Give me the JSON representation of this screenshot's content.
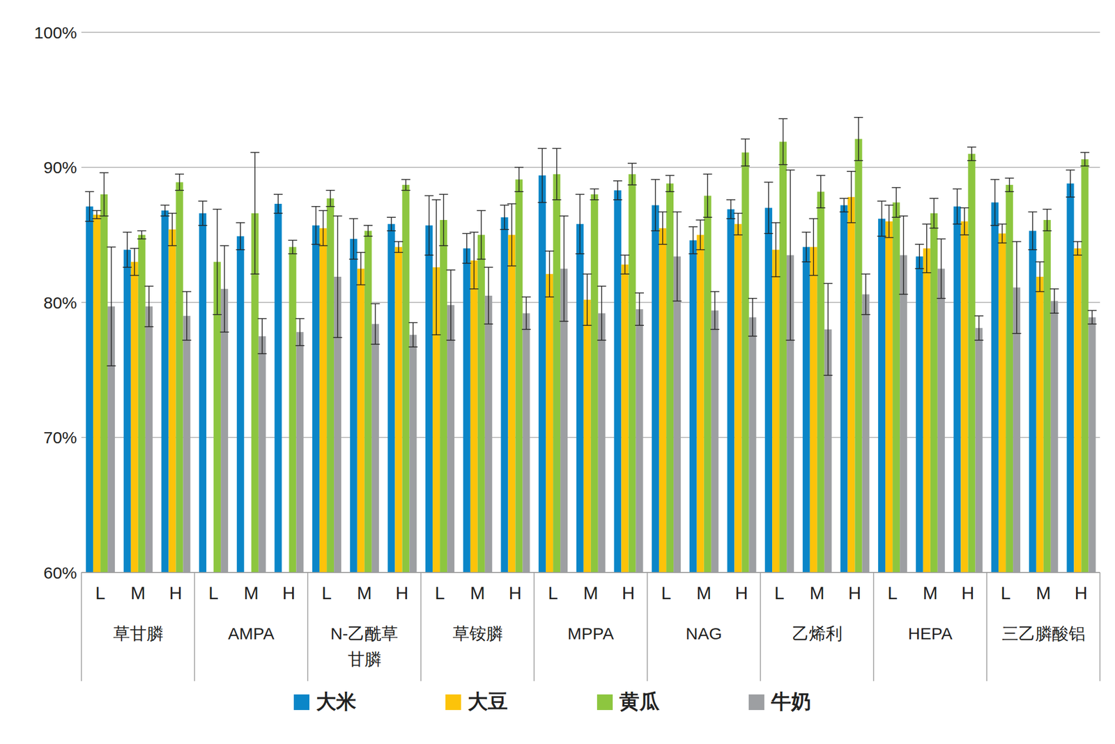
{
  "chart_data": {
    "type": "bar",
    "grid": true,
    "legend": "bottom",
    "categories": [
      "L",
      "M",
      "H",
      "L",
      "M",
      "H",
      "L",
      "M",
      "H",
      "L",
      "M",
      "H",
      "L",
      "M",
      "H",
      "L",
      "M",
      "H",
      "L",
      "M",
      "H",
      "L",
      "M",
      "H",
      "L",
      "M",
      "H"
    ],
    "groups": [
      "草甘膦",
      "AMPA",
      "N-乙酰草甘膦",
      "草铵膦",
      "MPPA",
      "NAG",
      "乙烯利",
      "HEPA",
      "三乙膦酸铝"
    ],
    "ylim": [
      60,
      100
    ],
    "yticks": [
      {
        "value": 60,
        "label": "60%"
      },
      {
        "value": 70,
        "label": "70%"
      },
      {
        "value": 80,
        "label": "80%"
      },
      {
        "value": 90,
        "label": "90%"
      },
      {
        "value": 100,
        "label": "100%"
      }
    ],
    "series": [
      {
        "name": "大米",
        "color": "#0b86c8",
        "values": [
          87.1,
          83.9,
          86.8,
          86.6,
          84.9,
          87.3,
          85.7,
          84.7,
          85.8,
          85.7,
          84.0,
          86.3,
          89.4,
          85.8,
          88.3,
          87.2,
          84.6,
          86.9,
          87.0,
          84.1,
          87.2,
          86.2,
          83.4,
          87.1,
          87.4,
          85.3,
          88.8
        ],
        "errors": [
          1.1,
          1.3,
          0.4,
          0.9,
          1.0,
          0.7,
          1.4,
          1.5,
          0.5,
          2.2,
          1.1,
          0.9,
          2.0,
          2.2,
          0.7,
          1.9,
          1.0,
          0.7,
          1.9,
          1.1,
          0.5,
          1.3,
          0.9,
          1.3,
          1.7,
          1.4,
          1.0
        ]
      },
      {
        "name": "大豆",
        "color": "#fcc30a",
        "values": [
          86.5,
          83.0,
          85.4,
          null,
          null,
          null,
          85.5,
          82.5,
          84.1,
          82.6,
          83.1,
          85.0,
          82.1,
          80.2,
          82.8,
          85.5,
          85.0,
          85.8,
          83.9,
          84.1,
          87.8,
          86.0,
          84.0,
          86.0,
          85.1,
          81.9,
          84.0
        ],
        "errors": [
          0.3,
          1.0,
          1.2,
          null,
          null,
          null,
          1.3,
          1.2,
          0.4,
          5.0,
          2.1,
          2.3,
          1.7,
          1.9,
          0.7,
          1.2,
          1.1,
          0.8,
          2.0,
          2.1,
          1.9,
          1.2,
          1.8,
          1.0,
          0.7,
          1.1,
          0.5
        ]
      },
      {
        "name": "黄瓜",
        "color": "#8dc63f",
        "values": [
          88.0,
          85.0,
          88.9,
          83.0,
          86.6,
          84.1,
          87.7,
          85.3,
          88.7,
          86.1,
          85.0,
          89.1,
          89.5,
          88.0,
          89.5,
          88.8,
          87.9,
          91.1,
          91.9,
          88.2,
          92.1,
          87.4,
          86.6,
          91.0,
          88.7,
          86.1,
          90.6
        ],
        "errors": [
          1.6,
          0.3,
          0.6,
          3.9,
          4.5,
          0.5,
          0.6,
          0.4,
          0.4,
          1.9,
          1.8,
          0.9,
          1.9,
          0.4,
          0.8,
          0.6,
          1.6,
          1.0,
          1.7,
          1.2,
          1.6,
          1.1,
          1.1,
          0.5,
          0.5,
          0.8,
          0.5
        ]
      },
      {
        "name": "牛奶",
        "color": "#9d9fa2",
        "values": [
          79.7,
          79.7,
          79.0,
          81.0,
          77.5,
          77.8,
          81.9,
          78.4,
          77.6,
          79.8,
          80.5,
          79.2,
          82.5,
          79.2,
          79.5,
          83.4,
          79.4,
          78.9,
          83.5,
          78.0,
          80.6,
          83.5,
          82.5,
          78.1,
          81.1,
          80.1,
          78.9
        ],
        "errors": [
          4.4,
          1.5,
          1.8,
          3.2,
          1.3,
          1.0,
          4.5,
          1.5,
          0.9,
          2.6,
          2.1,
          1.2,
          3.9,
          2.0,
          1.2,
          3.3,
          1.4,
          1.4,
          6.3,
          3.4,
          1.5,
          2.9,
          2.2,
          0.9,
          3.4,
          0.9,
          0.5
        ]
      }
    ]
  }
}
